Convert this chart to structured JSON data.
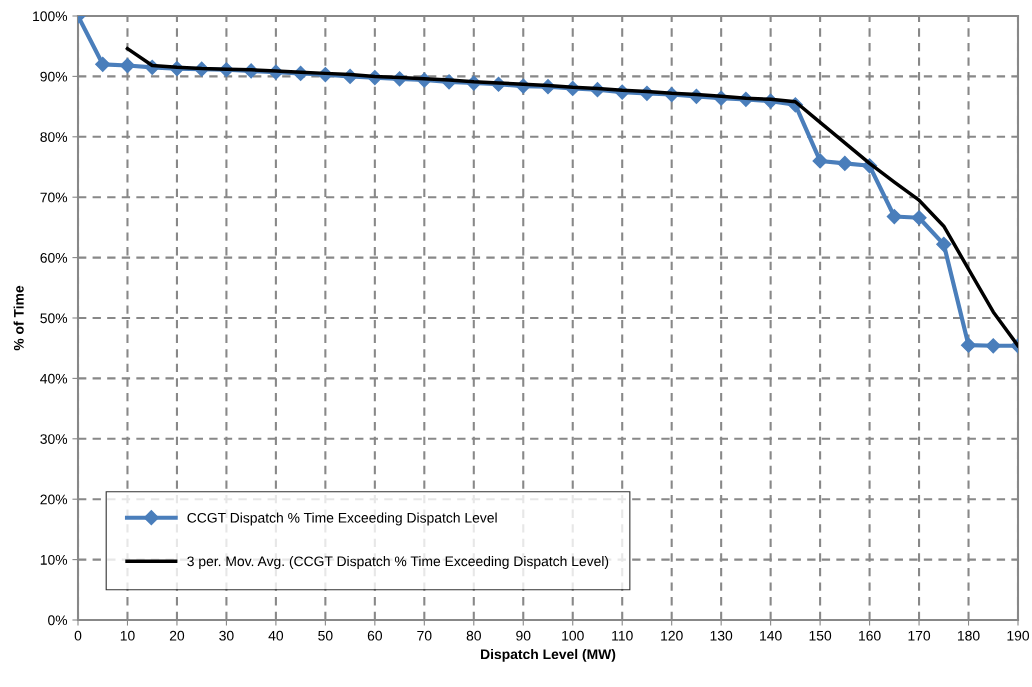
{
  "chart_data": {
    "type": "line",
    "xlabel": "Dispatch Level (MW)",
    "ylabel": "% of Time",
    "xlim": [
      0,
      190
    ],
    "xticks": [
      0,
      10,
      20,
      30,
      40,
      50,
      60,
      70,
      80,
      90,
      100,
      110,
      120,
      130,
      140,
      150,
      160,
      170,
      180,
      190
    ],
    "ylim": [
      0,
      100
    ],
    "yticks": [
      {
        "value": 0,
        "label": "0%"
      },
      {
        "value": 10,
        "label": "10%"
      },
      {
        "value": 20,
        "label": "20%"
      },
      {
        "value": 30,
        "label": "30%"
      },
      {
        "value": 40,
        "label": "40%"
      },
      {
        "value": 50,
        "label": "50%"
      },
      {
        "value": 60,
        "label": "60%"
      },
      {
        "value": 70,
        "label": "70%"
      },
      {
        "value": 80,
        "label": "80%"
      },
      {
        "value": 90,
        "label": "90%"
      },
      {
        "value": 100,
        "label": "100%"
      }
    ],
    "grid": true,
    "legend": "bottom left",
    "series": [
      {
        "name": "CCGT Dispatch % Time Exceeding Dispatch Level",
        "color": "#4a7ebb",
        "marker": "diamond",
        "x": [
          0,
          5,
          10,
          15,
          20,
          25,
          30,
          35,
          40,
          45,
          50,
          55,
          60,
          65,
          70,
          75,
          80,
          85,
          90,
          95,
          100,
          105,
          110,
          115,
          120,
          125,
          130,
          135,
          140,
          145,
          150,
          155,
          160,
          165,
          170,
          175,
          180,
          185,
          190
        ],
        "values": [
          100,
          92.0,
          91.8,
          91.5,
          91.3,
          91.2,
          91.1,
          90.9,
          90.7,
          90.5,
          90.3,
          90.0,
          89.8,
          89.6,
          89.4,
          89.1,
          88.9,
          88.7,
          88.4,
          88.3,
          88.0,
          87.8,
          87.4,
          87.2,
          87.0,
          86.7,
          86.4,
          86.2,
          85.9,
          85.3,
          76.0,
          75.6,
          75.2,
          66.8,
          66.6,
          62.2,
          45.5,
          45.4,
          45.4
        ]
      },
      {
        "name": "3 per. Mov. Avg. (CCGT Dispatch % Time Exceeding Dispatch Level)",
        "color": "#000000",
        "marker": "none",
        "x": [
          10,
          15,
          20,
          25,
          30,
          35,
          40,
          45,
          50,
          55,
          60,
          65,
          70,
          75,
          80,
          85,
          90,
          95,
          100,
          105,
          110,
          115,
          120,
          125,
          130,
          135,
          140,
          145,
          150,
          155,
          160,
          165,
          170,
          175,
          180,
          185,
          190
        ],
        "values": [
          94.6,
          91.8,
          91.5,
          91.3,
          91.2,
          91.1,
          90.9,
          90.7,
          90.5,
          90.3,
          90.0,
          89.8,
          89.6,
          89.4,
          89.1,
          88.9,
          88.7,
          88.5,
          88.2,
          88.0,
          87.7,
          87.5,
          87.2,
          87.0,
          86.7,
          86.4,
          86.2,
          85.8,
          82.4,
          79.0,
          75.6,
          72.5,
          69.5,
          65.2,
          58.1,
          51.0,
          45.4
        ]
      }
    ]
  }
}
